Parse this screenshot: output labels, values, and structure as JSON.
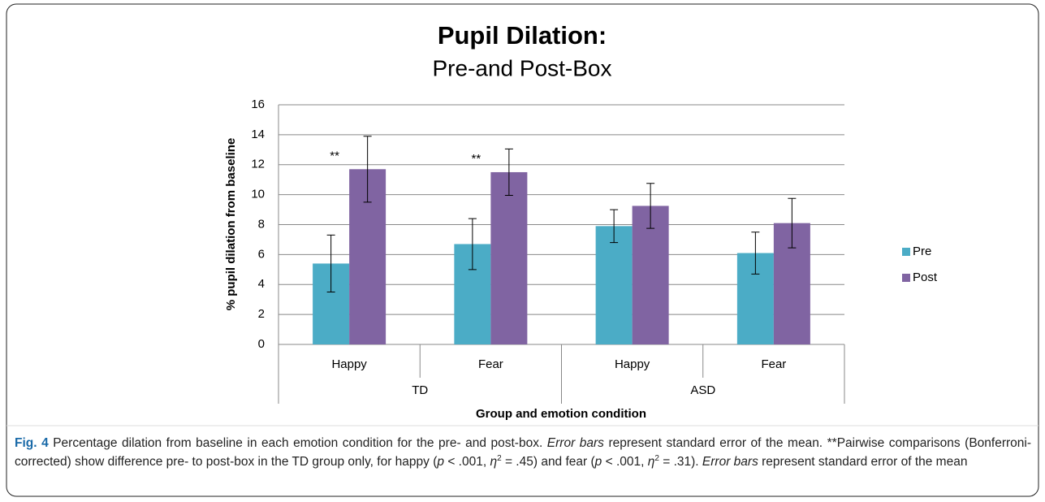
{
  "chart_data": {
    "type": "bar",
    "title": "Pupil Dilation:",
    "subtitle": "Pre-and Post-Box",
    "y_label": "% pupil dilation from baseline",
    "x_label": "Group and emotion condition",
    "groups": [
      "TD",
      "ASD"
    ],
    "categories": [
      "Happy",
      "Fear",
      "Happy",
      "Fear"
    ],
    "series": [
      {
        "name": "Pre",
        "color": "#4bacc6",
        "values": [
          5.4,
          6.7,
          7.9,
          6.1
        ],
        "errors": [
          1.9,
          1.7,
          1.1,
          1.4
        ]
      },
      {
        "name": "Post",
        "color": "#8064a2",
        "values": [
          11.7,
          11.5,
          9.25,
          8.1
        ],
        "errors": [
          2.2,
          1.55,
          1.5,
          1.65
        ]
      }
    ],
    "annotations": [
      {
        "text": "**",
        "group": "TD",
        "category": "Happy"
      },
      {
        "text": "**",
        "group": "TD",
        "category": "Fear"
      }
    ],
    "ylim": [
      0,
      16
    ],
    "yticks": [
      0,
      2,
      4,
      6,
      8,
      10,
      12,
      14,
      16
    ],
    "grid": true,
    "legend": "right"
  },
  "caption": [
    {
      "text": "Fig. 4",
      "style": "bold"
    },
    {
      "text": " Percentage dilation from baseline in each emotion condition for the pre- and post-box. "
    },
    {
      "text": "Error bars",
      "style": "italic"
    },
    {
      "text": " represent standard error of the mean. **Pairwise comparisons (Bonferroni-corrected) show difference pre- to post-box in the TD group only, for happy ("
    },
    {
      "text": "p",
      "style": "italic"
    },
    {
      "text": " < .001, "
    },
    {
      "text": "η",
      "style": "italic"
    },
    {
      "text": "2",
      "style": "sup"
    },
    {
      "text": " = .45) and fear ("
    },
    {
      "text": "p",
      "style": "italic"
    },
    {
      "text": " < .001, "
    },
    {
      "text": "η",
      "style": "italic"
    },
    {
      "text": "2",
      "style": "sup"
    },
    {
      "text": " = .31). "
    },
    {
      "text": "Error bars",
      "style": "italic"
    },
    {
      "text": " represent standard error of the mean"
    }
  ]
}
